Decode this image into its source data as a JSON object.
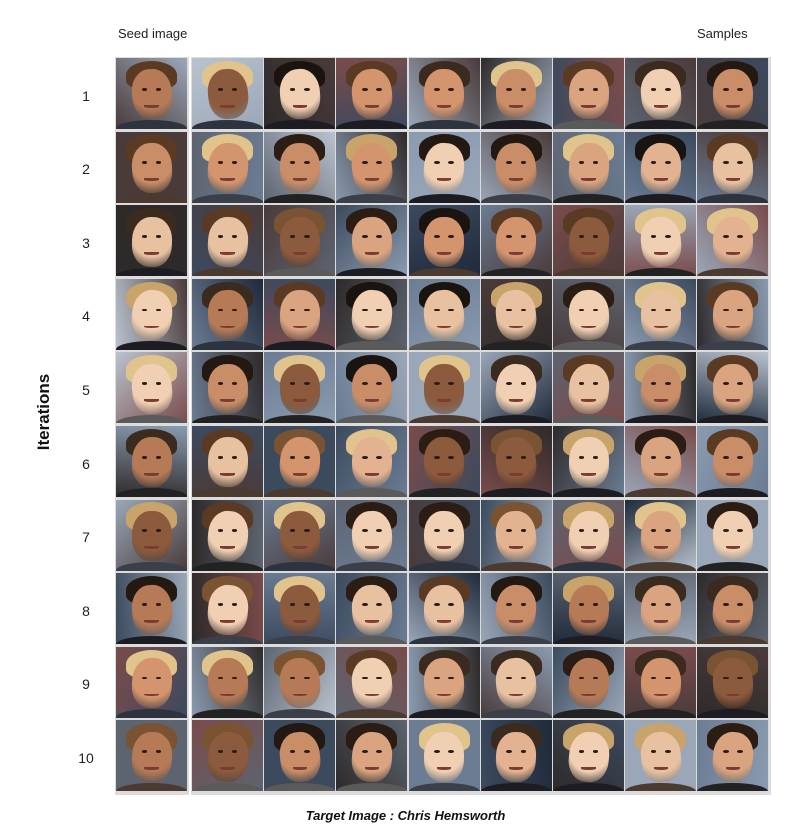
{
  "header": {
    "seed_label": "Seed image",
    "samples_label": "Samples"
  },
  "axis_label": "Iterations",
  "rows": [
    "1",
    "2",
    "3",
    "4",
    "5",
    "6",
    "7",
    "8",
    "9",
    "10"
  ],
  "caption": "Target Image : Chris Hemsworth",
  "grid": {
    "rows": 10,
    "sample_columns": 8
  }
}
